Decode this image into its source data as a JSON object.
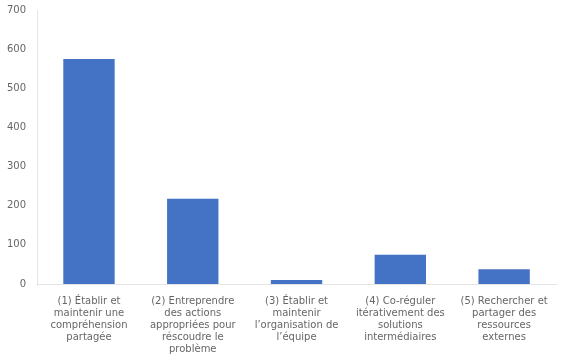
{
  "chart_data": {
    "type": "bar",
    "categories": [
      "(1) Établir et\nmaintenir une\ncompréhension\npartagée",
      "(2) Entreprendre\ndes actions\nappropriées pour\nréscoudre le\nproblème",
      "(3) Établir et\nmaintenir\nl’organisation de\nl’équipe",
      "(4) Co-réguler\nitérativement des\nsolutions\nintermédiaires",
      "(5) Rechercher et\npartager des\nressources\nexternes"
    ],
    "values": [
      575,
      218,
      10,
      75,
      38
    ],
    "color": "#4472C4",
    "ylim": [
      0,
      700
    ],
    "yticks": [
      0,
      100,
      200,
      300,
      400,
      500,
      600,
      700
    ],
    "grid": false
  }
}
